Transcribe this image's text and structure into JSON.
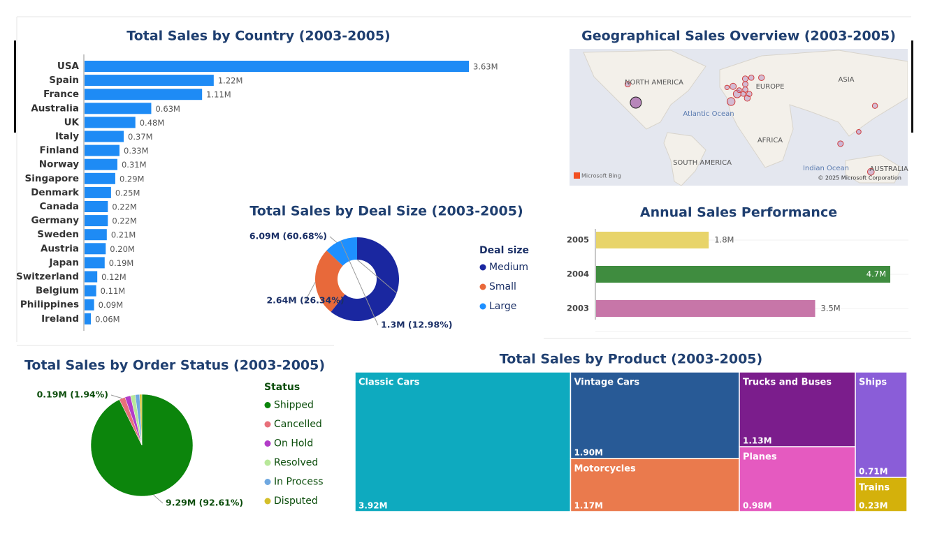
{
  "chart_data": [
    {
      "type": "hbar",
      "title": "Total Sales by Country (2003-2005)",
      "categories": [
        "USA",
        "Spain",
        "France",
        "Australia",
        "UK",
        "Italy",
        "Finland",
        "Norway",
        "Singapore",
        "Denmark",
        "Canada",
        "Germany",
        "Sweden",
        "Austria",
        "Japan",
        "Switzerland",
        "Belgium",
        "Philippines",
        "Ireland"
      ],
      "values": [
        3.63,
        1.22,
        1.11,
        0.63,
        0.48,
        0.37,
        0.33,
        0.31,
        0.29,
        0.25,
        0.22,
        0.22,
        0.21,
        0.2,
        0.19,
        0.12,
        0.11,
        0.09,
        0.06
      ],
      "value_labels": [
        "3.63M",
        "1.22M",
        "1.11M",
        "0.63M",
        "0.48M",
        "0.37M",
        "0.33M",
        "0.31M",
        "0.29M",
        "0.25M",
        "0.22M",
        "0.22M",
        "0.21M",
        "0.20M",
        "0.19M",
        "0.12M",
        "0.11M",
        "0.09M",
        "0.06M"
      ],
      "color": "#1e8bf5"
    },
    {
      "type": "map",
      "title": "Geographical Sales Overview (2003-2005)",
      "labels": [
        "NORTH AMERICA",
        "EUROPE",
        "ASIA",
        "Atlantic Ocean",
        "AFRICA",
        "SOUTH AMERICA",
        "Indian Ocean",
        "AUSTRALIA"
      ],
      "provider": "Microsoft Bing",
      "attribution": "© 2025 Microsoft Corporation",
      "color": "#b07ab5",
      "points": [
        {
          "lon": -98,
          "lat": 39,
          "value": 3.63
        },
        {
          "lon": -4,
          "lat": 40,
          "value": 1.22
        },
        {
          "lon": 2,
          "lat": 47,
          "value": 1.11
        },
        {
          "lon": 134,
          "lat": -25,
          "value": 0.63
        },
        {
          "lon": -2,
          "lat": 54,
          "value": 0.48
        },
        {
          "lon": 12,
          "lat": 43,
          "value": 0.37
        },
        {
          "lon": 26,
          "lat": 62,
          "value": 0.33
        },
        {
          "lon": 10,
          "lat": 61,
          "value": 0.31
        },
        {
          "lon": 104,
          "lat": 1,
          "value": 0.29
        },
        {
          "lon": 10,
          "lat": 56,
          "value": 0.25
        },
        {
          "lon": -106,
          "lat": 56,
          "value": 0.22
        },
        {
          "lon": 10,
          "lat": 51,
          "value": 0.22
        },
        {
          "lon": 16,
          "lat": 62,
          "value": 0.21
        },
        {
          "lon": 14,
          "lat": 47,
          "value": 0.2
        },
        {
          "lon": 138,
          "lat": 36,
          "value": 0.19
        },
        {
          "lon": 8,
          "lat": 47,
          "value": 0.12
        },
        {
          "lon": 4,
          "lat": 50.5,
          "value": 0.11
        },
        {
          "lon": 122,
          "lat": 12,
          "value": 0.09
        },
        {
          "lon": -8,
          "lat": 53,
          "value": 0.06
        }
      ]
    },
    {
      "type": "donut",
      "title": "Total Sales by Deal Size (2003-2005)",
      "legend_title": "Deal size",
      "categories": [
        "Medium",
        "Small",
        "Large"
      ],
      "values": [
        6.09,
        2.64,
        1.3
      ],
      "value_labels": [
        "6.09M (60.68%)",
        "2.64M (26.34%)",
        "1.3M (12.98%)"
      ],
      "colors": [
        "#1a27a0",
        "#e8693a",
        "#1e90ff"
      ]
    },
    {
      "type": "hbar-annual",
      "title": "Annual Sales Performance",
      "categories": [
        "2005",
        "2004",
        "2003"
      ],
      "values": [
        1.8,
        4.7,
        3.5
      ],
      "value_labels": [
        "1.8M",
        "4.7M",
        "3.5M"
      ],
      "colors": [
        "#e8d46a",
        "#3f8c3f",
        "#c776a8"
      ]
    },
    {
      "type": "pie",
      "title": "Total Sales by Order Status (2003-2005)",
      "legend_title": "Status",
      "categories": [
        "Shipped",
        "Cancelled",
        "On Hold",
        "Resolved",
        "In Process",
        "Disputed"
      ],
      "values": [
        9.29,
        0.19,
        0.18,
        0.15,
        0.14,
        0.07
      ],
      "value_labels": [
        "9.29M (92.61%)",
        "0.19M (1.94%)",
        null,
        null,
        null,
        null
      ],
      "colors": [
        "#0c850c",
        "#e8707a",
        "#b23cc8",
        "#b8e89a",
        "#6fa8e0",
        "#d4bf2a"
      ]
    },
    {
      "type": "treemap",
      "title": "Total Sales by Product (2003-2005)",
      "categories": [
        "Classic Cars",
        "Vintage Cars",
        "Motorcycles",
        "Trucks and Buses",
        "Planes",
        "Ships",
        "Trains"
      ],
      "values": [
        3.92,
        1.9,
        1.17,
        1.13,
        0.98,
        0.71,
        0.23
      ],
      "value_labels": [
        "3.92M",
        "1.90M",
        "1.17M",
        "1.13M",
        "0.98M",
        "0.71M",
        "0.23M"
      ],
      "colors": [
        "#0eaabf",
        "#285a96",
        "#ea7a4d",
        "#7b1d8c",
        "#e55ac0",
        "#8a5dd8",
        "#d4b10b"
      ]
    }
  ]
}
